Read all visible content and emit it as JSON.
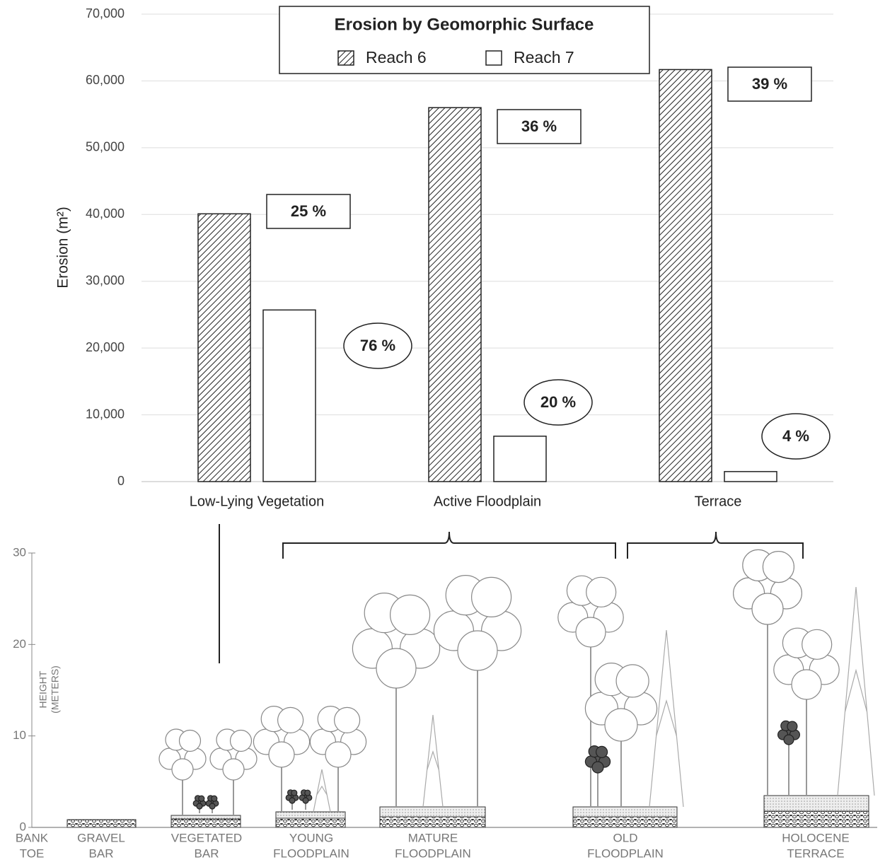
{
  "chart_data": {
    "type": "bar",
    "title": "Erosion by Geomorphic Surface",
    "y_label": "Erosion (m²)",
    "categories": [
      "Low-Lying Vegetation",
      "Active Floodplain",
      "Terrace"
    ],
    "series": [
      {
        "name": "Reach 6",
        "color": "#ffffff",
        "hatch": true,
        "values": [
          40100,
          56000,
          61700
        ]
      },
      {
        "name": "Reach 7",
        "color": "#ffffff",
        "hatch": false,
        "values": [
          25700,
          6800,
          1500
        ]
      }
    ],
    "ylim": [
      0,
      70000
    ],
    "yticks": [
      0,
      {
        "value": 10000,
        "label": "10,000"
      },
      {
        "value": 20000,
        "label": "20,000"
      },
      {
        "value": 30000,
        "label": "30,000"
      },
      {
        "value": 40000,
        "label": "40,000"
      },
      {
        "value": 50000,
        "label": "50,000"
      },
      {
        "value": 60000,
        "label": "60,000"
      },
      {
        "value": 70000,
        "label": "70,000"
      }
    ],
    "grid": true,
    "annotations": {
      "boxed": [
        "25 %",
        "36 %",
        "39 %"
      ],
      "circled": [
        "76 %",
        "20 %",
        "4 %"
      ]
    }
  },
  "diagram": {
    "y_label": [
      "HEIGHT",
      "(METERS)"
    ],
    "ylim": [
      0,
      30
    ],
    "yticks": [
      0,
      10,
      20,
      30
    ],
    "surfaces": [
      [
        "BANK",
        "TOE"
      ],
      [
        "GRAVEL",
        "BAR"
      ],
      [
        "VEGETATED",
        "BAR"
      ],
      [
        "YOUNG",
        "FLOODPLAIN"
      ],
      [
        "MATURE",
        "FLOODPLAIN"
      ],
      [
        "OLD",
        "FLOODPLAIN"
      ],
      [
        "HOLOCENE",
        "TERRACE"
      ]
    ]
  }
}
